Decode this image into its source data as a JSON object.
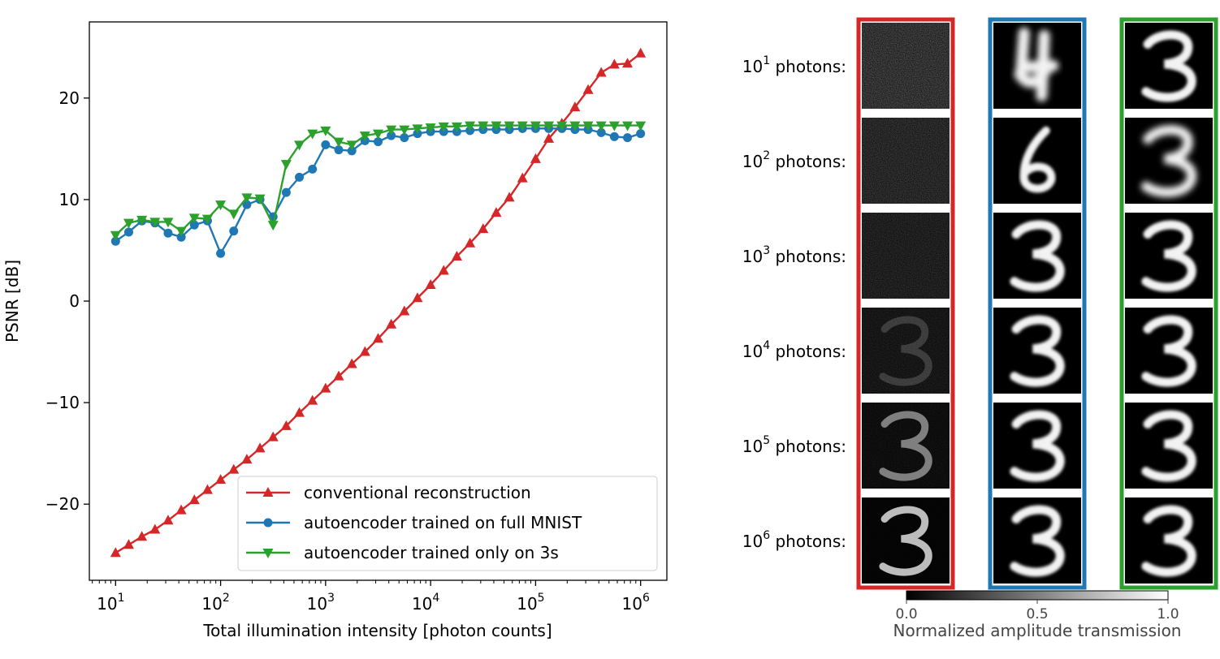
{
  "chart_data": [
    {
      "type": "line",
      "xscale": "log",
      "xlim_exp": [
        0.75,
        6.25
      ],
      "ylim": [
        -27.5,
        27.5
      ],
      "xlabel": "Total illumination intensity [photon counts]",
      "ylabel": "PSNR [dB]",
      "yticks": [
        -20,
        -10,
        0,
        10,
        20
      ],
      "ytick_labels": [
        "−20",
        "−10",
        "0",
        "10",
        "20"
      ],
      "xticks_exp": [
        1,
        2,
        3,
        4,
        5,
        6
      ],
      "xtick_base": "10",
      "legend_position": "lower-right",
      "series": [
        {
          "name": "conventional reconstruction",
          "color": "#d62728",
          "marker": "triangle-up",
          "x_exp": [
            1.0,
            1.125,
            1.25,
            1.375,
            1.5,
            1.625,
            1.75,
            1.875,
            2.0,
            2.125,
            2.25,
            2.375,
            2.5,
            2.625,
            2.75,
            2.875,
            3.0,
            3.125,
            3.25,
            3.375,
            3.5,
            3.625,
            3.75,
            3.875,
            4.0,
            4.125,
            4.25,
            4.375,
            4.5,
            4.625,
            4.75,
            4.875,
            5.0,
            5.125,
            5.25,
            5.375,
            5.5,
            5.625,
            5.75,
            5.875,
            6.0
          ],
          "values": [
            -24.8,
            -24.0,
            -23.2,
            -22.5,
            -21.6,
            -20.6,
            -19.6,
            -18.6,
            -17.6,
            -16.6,
            -15.6,
            -14.5,
            -13.4,
            -12.3,
            -11.0,
            -9.8,
            -8.6,
            -7.4,
            -6.2,
            -5.0,
            -3.7,
            -2.3,
            -1.0,
            0.3,
            1.6,
            3.0,
            4.4,
            5.7,
            7.1,
            8.7,
            10.2,
            12.1,
            14.0,
            16.0,
            17.5,
            19.1,
            20.8,
            22.5,
            23.3,
            23.4,
            24.4
          ]
        },
        {
          "name": "autoencoder trained on full MNIST",
          "color": "#1f77b4",
          "marker": "circle",
          "x_exp": [
            1.0,
            1.125,
            1.25,
            1.375,
            1.5,
            1.625,
            1.75,
            1.875,
            2.0,
            2.125,
            2.25,
            2.375,
            2.5,
            2.625,
            2.75,
            2.875,
            3.0,
            3.125,
            3.25,
            3.375,
            3.5,
            3.625,
            3.75,
            3.875,
            4.0,
            4.125,
            4.25,
            4.375,
            4.5,
            4.625,
            4.75,
            4.875,
            5.0,
            5.125,
            5.25,
            5.375,
            5.5,
            5.625,
            5.75,
            5.875,
            6.0
          ],
          "values": [
            5.9,
            6.8,
            7.9,
            7.7,
            6.7,
            6.3,
            7.5,
            7.9,
            4.7,
            6.9,
            9.5,
            10.0,
            8.3,
            10.7,
            12.2,
            13.0,
            15.4,
            14.9,
            14.8,
            15.8,
            15.7,
            16.3,
            16.1,
            16.5,
            16.7,
            16.7,
            16.7,
            16.8,
            16.9,
            16.9,
            16.9,
            17.0,
            17.0,
            17.0,
            17.0,
            16.9,
            16.9,
            16.6,
            16.2,
            16.1,
            16.5
          ]
        },
        {
          "name": "autoencoder trained only on 3s",
          "color": "#2ca02c",
          "marker": "triangle-down",
          "x_exp": [
            1.0,
            1.125,
            1.25,
            1.375,
            1.5,
            1.625,
            1.75,
            1.875,
            2.0,
            2.125,
            2.25,
            2.375,
            2.5,
            2.625,
            2.75,
            2.875,
            3.0,
            3.125,
            3.25,
            3.375,
            3.5,
            3.625,
            3.75,
            3.875,
            4.0,
            4.125,
            4.25,
            4.375,
            4.5,
            4.625,
            4.75,
            4.875,
            5.0,
            5.125,
            5.25,
            5.375,
            5.5,
            5.625,
            5.75,
            5.875,
            6.0
          ],
          "values": [
            6.5,
            7.7,
            8.0,
            7.8,
            7.8,
            6.9,
            8.2,
            8.1,
            9.5,
            8.6,
            10.2,
            10.1,
            7.5,
            13.5,
            15.4,
            16.5,
            16.8,
            15.7,
            15.4,
            16.3,
            16.5,
            16.9,
            16.9,
            17.0,
            17.1,
            17.2,
            17.2,
            17.3,
            17.3,
            17.3,
            17.3,
            17.3,
            17.3,
            17.3,
            17.3,
            17.3,
            17.3,
            17.3,
            17.3,
            17.3,
            17.3
          ]
        }
      ]
    },
    {
      "type": "heatmap",
      "row_labels": [
        {
          "base": "10",
          "exp": "1",
          "suffix": " photons:"
        },
        {
          "base": "10",
          "exp": "2",
          "suffix": " photons:"
        },
        {
          "base": "10",
          "exp": "3",
          "suffix": " photons:"
        },
        {
          "base": "10",
          "exp": "4",
          "suffix": " photons:"
        },
        {
          "base": "10",
          "exp": "5",
          "suffix": " photons:"
        },
        {
          "base": "10",
          "exp": "6",
          "suffix": " photons:"
        }
      ],
      "columns": [
        {
          "name": "conventional reconstruction",
          "frame_color": "#d62728",
          "digit_opacity": [
            0,
            0,
            0,
            0.2,
            0.55,
            0.85
          ],
          "noise_opacity": [
            0.9,
            0.7,
            0.55,
            0.4,
            0.25,
            0.08
          ]
        },
        {
          "name": "autoencoder trained on full MNIST",
          "frame_color": "#1f77b4",
          "content": [
            "4-like blob",
            "6-like",
            "3",
            "3",
            "3",
            "3"
          ]
        },
        {
          "name": "autoencoder trained only on 3s",
          "frame_color": "#2ca02c",
          "content": [
            "3",
            "blurry 3",
            "3",
            "3",
            "3",
            "3"
          ]
        }
      ],
      "colorbar": {
        "label": "Normalized amplitude transmission",
        "ticks": [
          0.0,
          0.5,
          1.0
        ],
        "tick_labels": [
          "0.0",
          "0.5",
          "1.0"
        ],
        "colormap": "gray"
      }
    }
  ]
}
